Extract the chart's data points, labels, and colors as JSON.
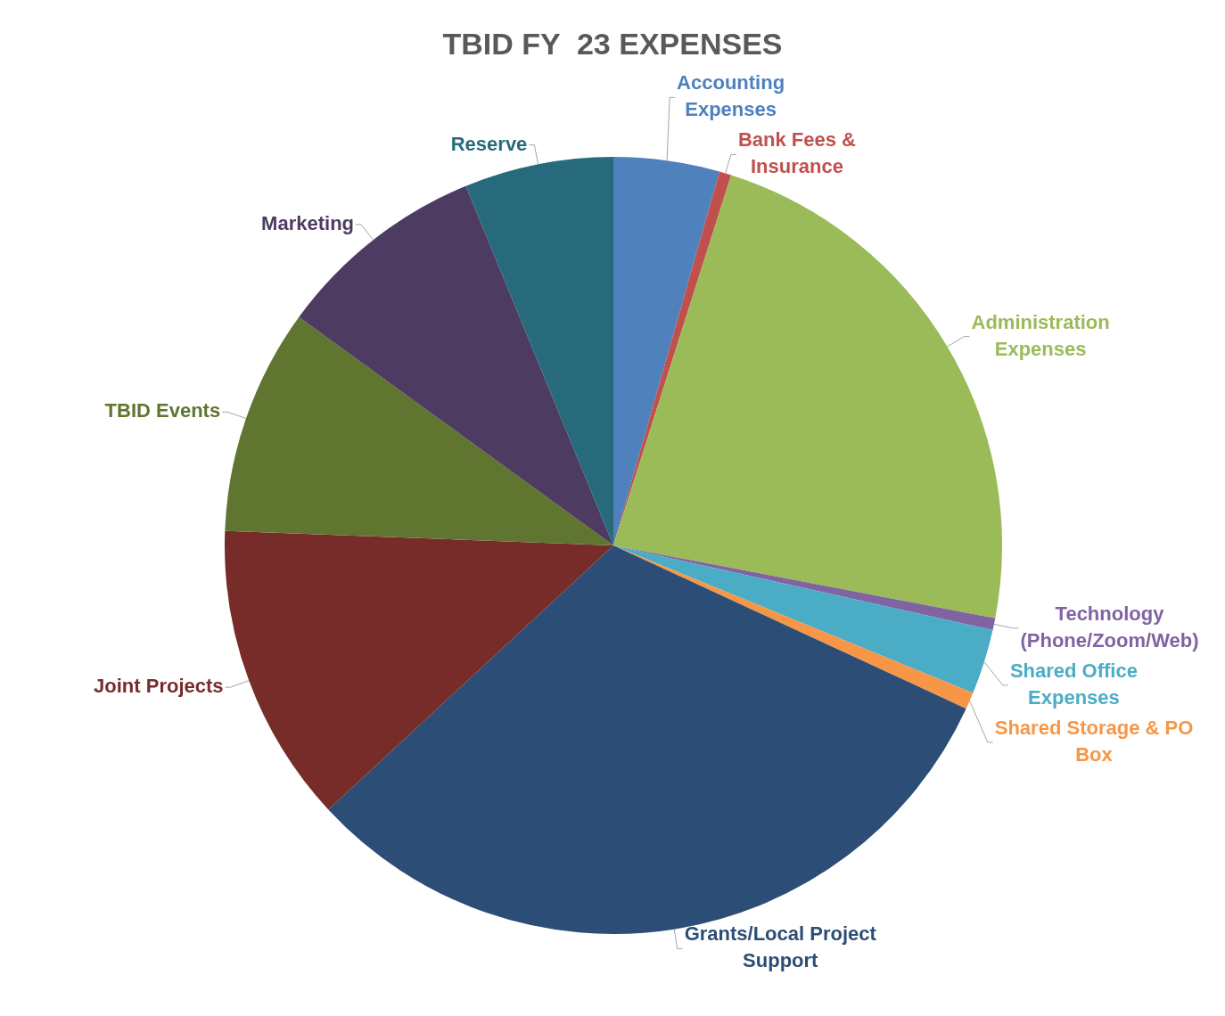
{
  "chart_data": {
    "type": "pie",
    "title": "TBID FY  23 EXPENSES",
    "categories": [
      "Accounting Expenses",
      "Bank Fees & Insurance",
      "Administration Expenses",
      "Technology (Phone/Zoom/Web)",
      "Shared Office Expenses",
      "Shared Storage & PO Box",
      "Grants/Local Project Support",
      "Joint Projects",
      "TBID Events",
      "Marketing",
      "Reserve"
    ],
    "values": [
      4.4,
      0.5,
      23.1,
      0.5,
      2.7,
      0.7,
      31.2,
      12.5,
      9.4,
      8.8,
      6.2
    ],
    "colors": [
      "#4f81bd",
      "#c0504d",
      "#9bbb59",
      "#8064a2",
      "#4bacc6",
      "#f79646",
      "#2c4d75",
      "#772c2a",
      "#5f7530",
      "#4d3b62",
      "#276a7c"
    ]
  }
}
